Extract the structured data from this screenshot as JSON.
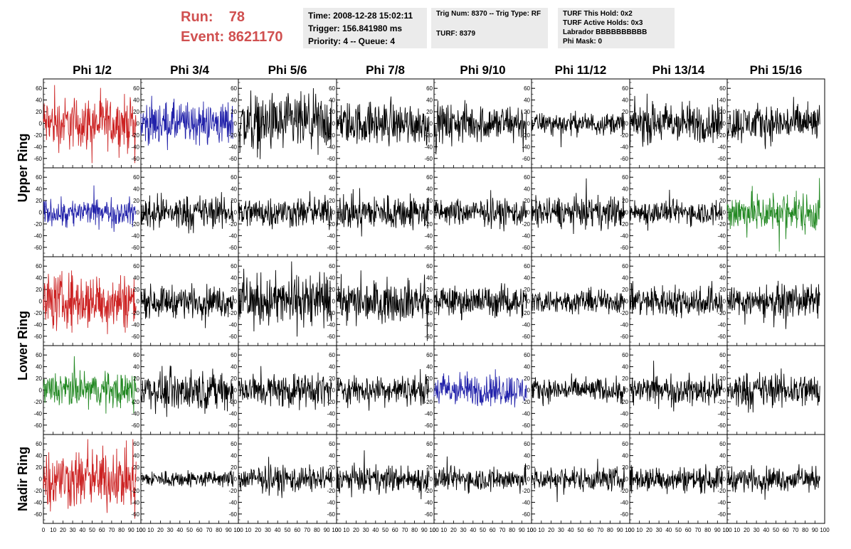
{
  "header": {
    "run_label": "Run:",
    "run_value": "78",
    "event_label": "Event:",
    "event_value": "8621170",
    "time": "Time: 2008-12-28 15:02:11",
    "trigger": "Trigger: 156.841980 ms",
    "priority": "Priority: 4 -- Queue: 4",
    "trig_num": "Trig Num: 8370 -- Trig Type: RF",
    "turf": "TURF: 8379",
    "turf_this_hold": "TURF This Hold: 0x2",
    "turf_active_holds": "TURF Active Holds: 0x3",
    "labrador": "Labrador BBBBBBBBBB",
    "phi_mask": "Phi Mask: 0"
  },
  "chart_data": {
    "type": "line",
    "columns": [
      "Phi 1/2",
      "Phi 3/4",
      "Phi 5/6",
      "Phi 7/8",
      "Phi 9/10",
      "Phi 11/12",
      "Phi 13/14",
      "Phi 15/16"
    ],
    "row_groups": [
      {
        "label": "Upper Ring",
        "rows": [
          0,
          1
        ]
      },
      {
        "label": "Lower Ring",
        "rows": [
          2,
          3
        ]
      },
      {
        "label": "Nadir Ring",
        "rows": [
          4
        ]
      }
    ],
    "xlim": [
      0,
      100
    ],
    "ylim": [
      -70,
      70
    ],
    "x_ticks": [
      0,
      10,
      20,
      30,
      40,
      50,
      60,
      70,
      80,
      90,
      100
    ],
    "y_ticks": [
      -60,
      -40,
      -20,
      0,
      20,
      40,
      60
    ],
    "colors": {
      "red": "#cc2222",
      "blue": "#2222aa",
      "green": "#228822",
      "black": "#000000"
    },
    "trace_colors": [
      [
        "red",
        "blue",
        "black",
        "black",
        "black",
        "black",
        "black",
        "black"
      ],
      [
        "blue",
        "black",
        "black",
        "black",
        "black",
        "black",
        "black",
        "green"
      ],
      [
        "red",
        "black",
        "black",
        "black",
        "black",
        "black",
        "black",
        "black"
      ],
      [
        "green",
        "black",
        "black",
        "black",
        "blue",
        "black",
        "black",
        "black"
      ],
      [
        "red",
        "black",
        "black",
        "black",
        "black",
        "black",
        "black",
        "black"
      ]
    ],
    "trace_amplitude": [
      [
        22,
        18,
        24,
        18,
        16,
        9,
        17,
        16
      ],
      [
        11,
        14,
        13,
        15,
        11,
        13,
        10,
        17
      ],
      [
        24,
        13,
        22,
        17,
        13,
        10,
        13,
        13
      ],
      [
        15,
        16,
        14,
        12,
        14,
        10,
        12,
        15
      ],
      [
        25,
        7,
        11,
        11,
        10,
        10,
        11,
        10
      ]
    ],
    "x_range": [
      0,
      95
    ]
  }
}
